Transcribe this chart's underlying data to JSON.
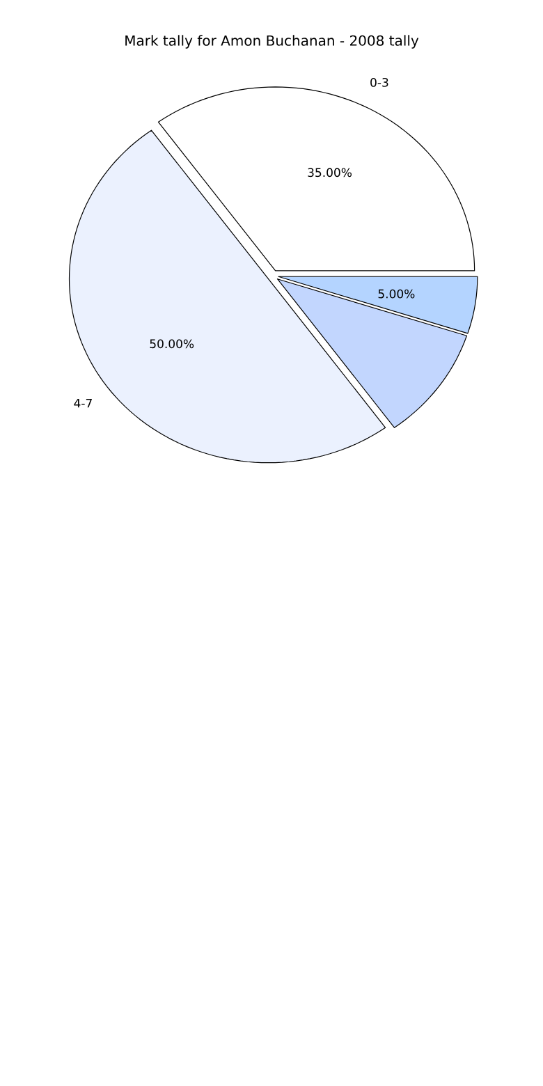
{
  "chart_data": {
    "type": "pie",
    "title": "Mark tally for Amon Buchanan - 2008 tally",
    "categories": [
      "0-3",
      "4-7",
      null,
      null
    ],
    "values": [
      35,
      50,
      10,
      5
    ],
    "value_labels": [
      "35.00%",
      "50.00%",
      null,
      "5.00%"
    ],
    "colors": [
      "#ffffff",
      "#ebf1fe",
      "#c2d6fe",
      "#b4d4ff"
    ]
  }
}
